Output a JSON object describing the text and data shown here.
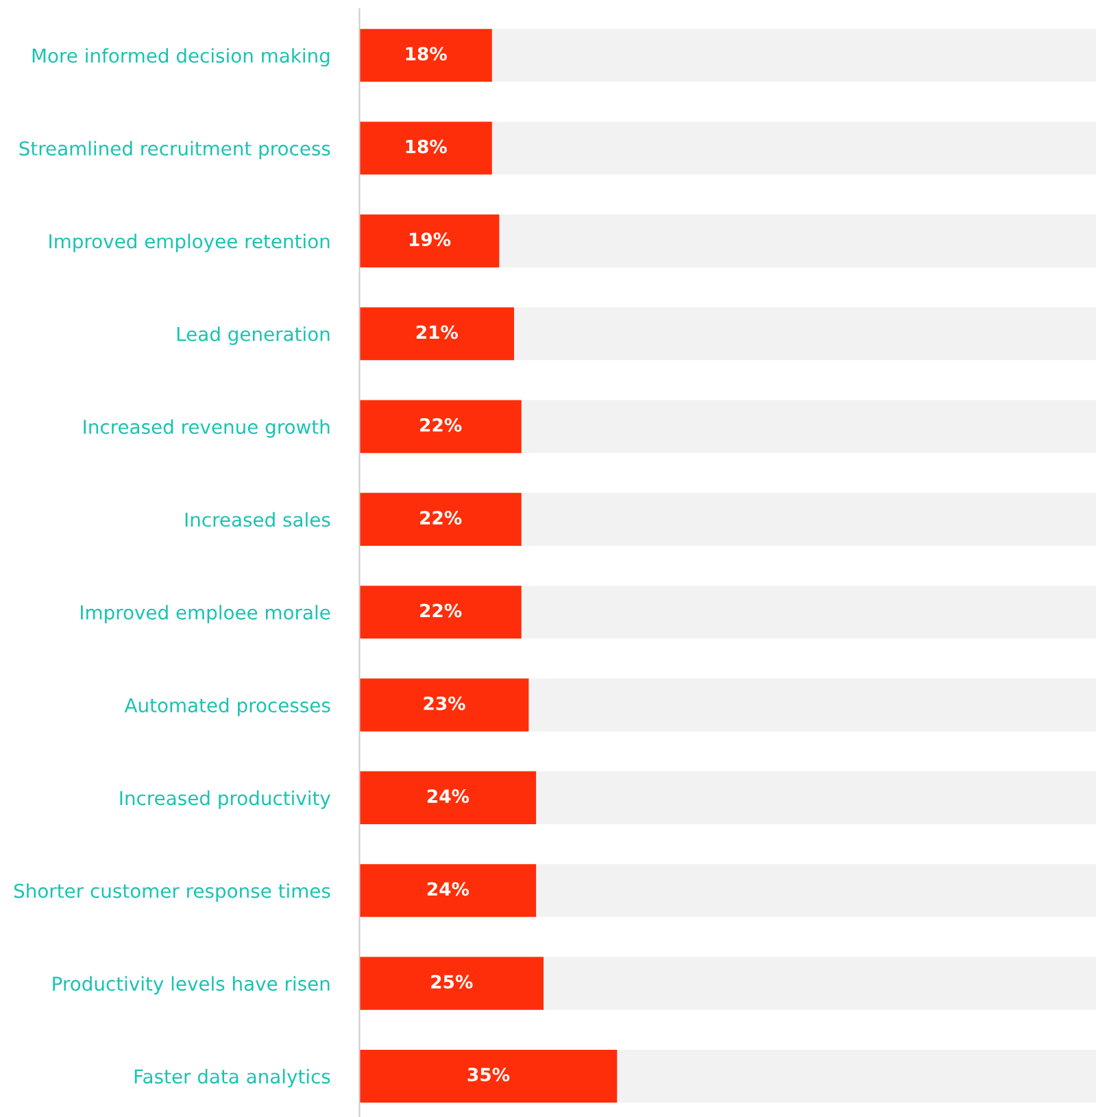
{
  "chart_data": {
    "type": "bar",
    "orientation": "horizontal",
    "stacked": true,
    "categories": [
      "More informed decision making",
      "Streamlined recruitment process",
      "Improved employee retention",
      "Lead generation",
      "Increased revenue growth",
      "Increased sales",
      "Improved emploee morale",
      "Automated processes",
      "Increased productivity",
      "Shorter customer response times",
      "Productivity levels have risen",
      "Faster data analytics"
    ],
    "series": [
      {
        "color": "#ff2e0a",
        "values": [
          18,
          18,
          19,
          21,
          22,
          22,
          22,
          23,
          24,
          24,
          25,
          35
        ],
        "value_labels": [
          "18%",
          "18%",
          "19%",
          "21%",
          "22%",
          "22%",
          "22%",
          "23%",
          "24%",
          "24%",
          "25%",
          "35%"
        ]
      },
      {
        "color": "#f2f2f2",
        "values": [
          82,
          82,
          81,
          79,
          78,
          78,
          78,
          77,
          76,
          76,
          75,
          65
        ]
      }
    ],
    "tick_labels": "y",
    "grid": false,
    "legend": false
  }
}
